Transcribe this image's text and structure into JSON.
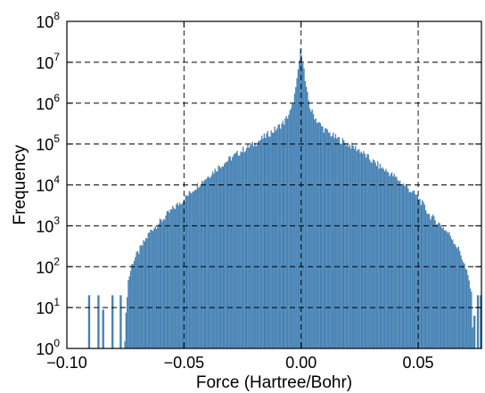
{
  "chart_data": {
    "type": "bar",
    "title": "",
    "xlabel": "Force (Hartree/Bohr)",
    "ylabel": "Frequency",
    "xlim": [
      -0.1,
      0.077
    ],
    "ylim_log10": [
      0,
      8
    ],
    "yscale": "log",
    "grid": true,
    "bar_color": "#4682b4",
    "x_ticks": [
      {
        "value": -0.1,
        "label": "−0.10"
      },
      {
        "value": -0.05,
        "label": "−0.05"
      },
      {
        "value": 0.0,
        "label": "0.00"
      },
      {
        "value": 0.05,
        "label": "0.05"
      }
    ],
    "y_ticks": [
      {
        "exp": 0,
        "base": "10",
        "sup": "0"
      },
      {
        "exp": 1,
        "base": "10",
        "sup": "1"
      },
      {
        "exp": 2,
        "base": "10",
        "sup": "2"
      },
      {
        "exp": 3,
        "base": "10",
        "sup": "3"
      },
      {
        "exp": 4,
        "base": "10",
        "sup": "4"
      },
      {
        "exp": 5,
        "base": "10",
        "sup": "5"
      },
      {
        "exp": 6,
        "base": "10",
        "sup": "6"
      },
      {
        "exp": 7,
        "base": "10",
        "sup": "7"
      },
      {
        "exp": 8,
        "base": "10",
        "sup": "8"
      }
    ],
    "profile_log10_counts": [
      {
        "x": -0.0755,
        "y": 0.0
      },
      {
        "x": -0.074,
        "y": 1.6
      },
      {
        "x": -0.072,
        "y": 2.1
      },
      {
        "x": -0.068,
        "y": 2.5
      },
      {
        "x": -0.064,
        "y": 2.9
      },
      {
        "x": -0.06,
        "y": 3.1
      },
      {
        "x": -0.055,
        "y": 3.4
      },
      {
        "x": -0.05,
        "y": 3.65
      },
      {
        "x": -0.045,
        "y": 3.95
      },
      {
        "x": -0.04,
        "y": 4.2
      },
      {
        "x": -0.035,
        "y": 4.45
      },
      {
        "x": -0.03,
        "y": 4.65
      },
      {
        "x": -0.025,
        "y": 4.85
      },
      {
        "x": -0.02,
        "y": 5.0
      },
      {
        "x": -0.015,
        "y": 5.2
      },
      {
        "x": -0.01,
        "y": 5.4
      },
      {
        "x": -0.007,
        "y": 5.55
      },
      {
        "x": -0.004,
        "y": 5.85
      },
      {
        "x": -0.002,
        "y": 6.4
      },
      {
        "x": -0.001,
        "y": 6.95
      },
      {
        "x": 0.0,
        "y": 7.35
      },
      {
        "x": 0.001,
        "y": 6.95
      },
      {
        "x": 0.002,
        "y": 6.4
      },
      {
        "x": 0.004,
        "y": 5.85
      },
      {
        "x": 0.007,
        "y": 5.55
      },
      {
        "x": 0.01,
        "y": 5.35
      },
      {
        "x": 0.015,
        "y": 5.15
      },
      {
        "x": 0.02,
        "y": 5.0
      },
      {
        "x": 0.025,
        "y": 4.85
      },
      {
        "x": 0.03,
        "y": 4.6
      },
      {
        "x": 0.035,
        "y": 4.4
      },
      {
        "x": 0.04,
        "y": 4.2
      },
      {
        "x": 0.045,
        "y": 3.95
      },
      {
        "x": 0.05,
        "y": 3.7
      },
      {
        "x": 0.055,
        "y": 3.25
      },
      {
        "x": 0.06,
        "y": 3.0
      },
      {
        "x": 0.064,
        "y": 2.75
      },
      {
        "x": 0.068,
        "y": 2.35
      },
      {
        "x": 0.07,
        "y": 2.0
      },
      {
        "x": 0.072,
        "y": 1.6
      },
      {
        "x": 0.073,
        "y": 1.2
      },
      {
        "x": 0.0735,
        "y": 0.0
      }
    ],
    "outlier_bars": [
      {
        "x": -0.0905,
        "y": 1.3
      },
      {
        "x": -0.0865,
        "y": 1.3
      },
      {
        "x": -0.0845,
        "y": 0.95
      },
      {
        "x": -0.0805,
        "y": 1.3
      },
      {
        "x": -0.077,
        "y": 1.3
      },
      {
        "x": 0.074,
        "y": 0.8
      },
      {
        "x": 0.0755,
        "y": 1.3
      },
      {
        "x": 0.0768,
        "y": 1.3
      }
    ]
  }
}
